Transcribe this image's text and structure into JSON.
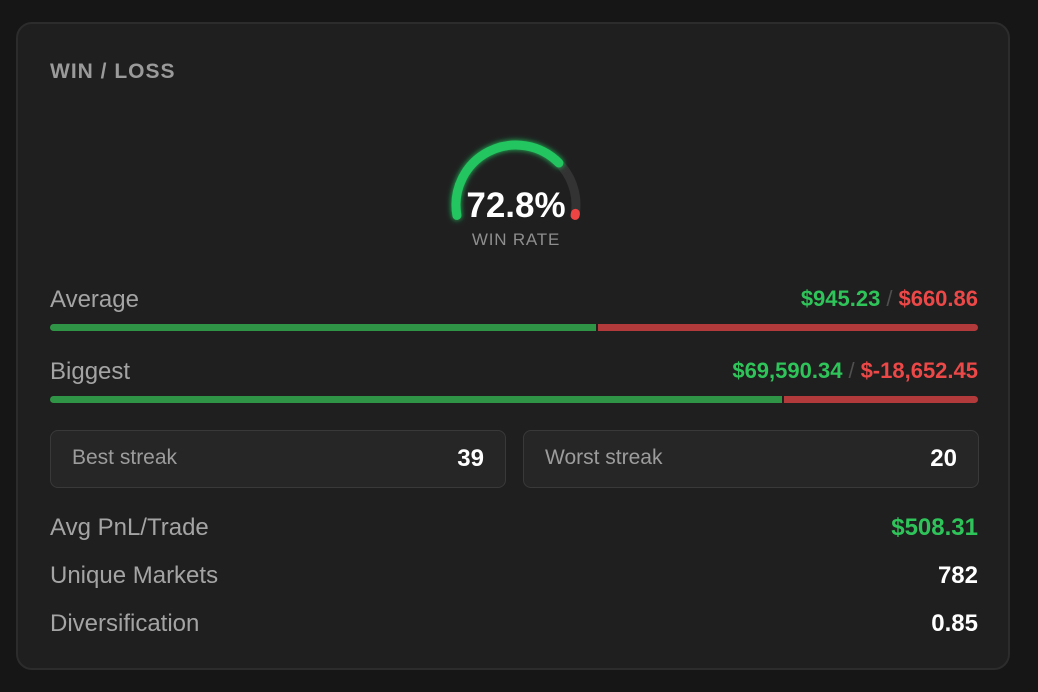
{
  "card": {
    "title": "WIN / LOSS"
  },
  "gauge": {
    "win_rate": 0.728,
    "value_text": "72.8%",
    "label": "WIN RATE",
    "colors": {
      "win": "#22c55e",
      "loss": "#ef4444",
      "track": "#333333"
    }
  },
  "average": {
    "label": "Average",
    "win_value": "$945.23",
    "separator": "/",
    "loss_value": "$660.86",
    "win": 945.23,
    "loss": 660.86
  },
  "biggest": {
    "label": "Biggest",
    "win_value": "$69,590.34",
    "separator": "/",
    "loss_value": "$-18,652.45",
    "win": 69590.34,
    "loss": 18652.45
  },
  "streaks": {
    "best_label": "Best streak",
    "best_value": "39",
    "worst_label": "Worst streak",
    "worst_value": "20"
  },
  "stats": {
    "avg_pnl_label": "Avg PnL/Trade",
    "avg_pnl_value": "$508.31",
    "unique_markets_label": "Unique Markets",
    "unique_markets_value": "782",
    "diversification_label": "Diversification",
    "diversification_value": "0.85"
  },
  "colors": {
    "positive": "#2fc45a",
    "negative": "#ec4848",
    "bar_win": "#2f9446",
    "bar_loss": "#b33a3a"
  }
}
